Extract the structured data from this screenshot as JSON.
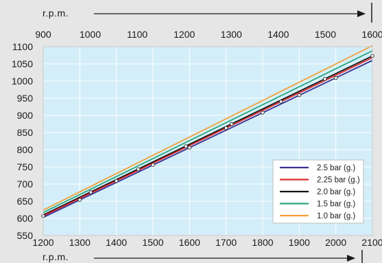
{
  "chart_data": {
    "type": "line",
    "top_axis": {
      "label": "r.p.m.",
      "ticks": [
        900,
        1000,
        1100,
        1200,
        1300,
        1400,
        1500,
        1600
      ],
      "range": [
        900,
        1600
      ]
    },
    "bottom_axis": {
      "label": "r.p.m.",
      "ticks": [
        1200,
        1300,
        1400,
        1500,
        1600,
        1700,
        1800,
        1900,
        2000,
        2100
      ],
      "range": [
        1200,
        2100
      ]
    },
    "y_axis": {
      "label": "",
      "ticks": [
        550,
        600,
        650,
        700,
        750,
        800,
        850,
        900,
        950,
        1000,
        1050,
        1100
      ],
      "range": [
        550,
        1100
      ]
    },
    "grid": true,
    "legend_position": "bottom-right",
    "series": [
      {
        "name": "2.5  bar (g.)",
        "color": "#3a2f8f",
        "x": [
          1200,
          2100
        ],
        "y": [
          603,
          1060
        ],
        "markers": {
          "x": [
            1300,
            1500,
            1600,
            1800,
            1900,
            2000
          ],
          "y": [
            654,
            756,
            806,
            908,
            959,
            1009
          ]
        }
      },
      {
        "name": "2.25 bar (g.)",
        "color": "#e02a2a",
        "x": [
          1200,
          2100
        ],
        "y": [
          607,
          1068
        ],
        "markers": {
          "x": [
            1200,
            1400,
            1700,
            1850
          ],
          "y": [
            607,
            709,
            863,
            940
          ]
        }
      },
      {
        "name": "2.0  bar (g.)",
        "color": "#111111",
        "x": [
          1200,
          2100
        ],
        "y": [
          610,
          1073
        ],
        "markers": {
          "x": [
            1330,
            1460,
            1590,
            1715,
            1970,
            2100
          ],
          "y": [
            676,
            743,
            810,
            875,
            1006,
            1073
          ]
        }
      },
      {
        "name": "1.5  bar (g.)",
        "color": "#2aa57a",
        "x": [
          1200,
          2100
        ],
        "y": [
          617,
          1088
        ],
        "markers": {
          "x": [],
          "y": []
        }
      },
      {
        "name": "1.0  bar (g.)",
        "color": "#f2a038",
        "x": [
          1200,
          2100
        ],
        "y": [
          624,
          1103
        ],
        "markers": {
          "x": [],
          "y": []
        }
      }
    ],
    "colors": {
      "background": "#e6e6e6",
      "plot_background": "#d3eef9",
      "grid": "#ffffff"
    }
  }
}
